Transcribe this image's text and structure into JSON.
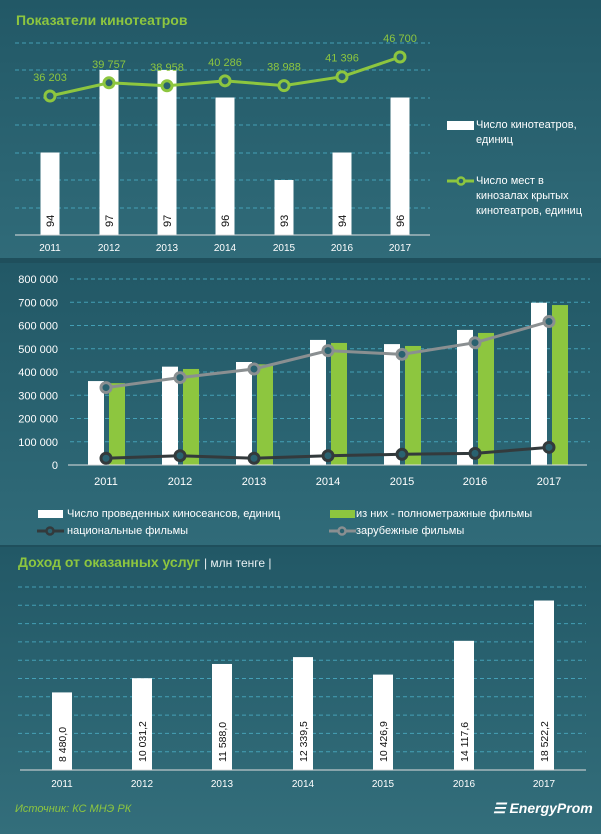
{
  "colors": {
    "green": "#8dc63f",
    "white": "#ffffff",
    "national": "#333a3c",
    "foreign": "#8a8f91",
    "grid": "#4bb0c8"
  },
  "chart_data": [
    {
      "type": "bar+line",
      "title": "Показатели кинотеатров",
      "categories": [
        "2011",
        "2012",
        "2013",
        "2014",
        "2015",
        "2016",
        "2017"
      ],
      "series": [
        {
          "name": "Число кинотеатров, единиц",
          "kind": "bar",
          "values": [
            94,
            97,
            97,
            96,
            93,
            94,
            96
          ],
          "labels": [
            "94",
            "97",
            "97",
            "96",
            "93",
            "94",
            "96"
          ]
        },
        {
          "name": "Число мест в кинозалах крытых кинотеатров, единиц",
          "kind": "line",
          "values": [
            36203,
            39757,
            38958,
            40286,
            38988,
            41396,
            46700
          ],
          "labels": [
            "36 203",
            "39 757",
            "38 958",
            "40 286",
            "38 988",
            "41 396",
            "46 700"
          ]
        }
      ],
      "legend": "right",
      "grid": true
    },
    {
      "type": "bar+line",
      "categories": [
        "2011",
        "2012",
        "2013",
        "2014",
        "2015",
        "2016",
        "2017"
      ],
      "yticks": [
        "0",
        "100 000",
        "200 000",
        "300 000",
        "400 000",
        "500 000",
        "600 000",
        "700 000",
        "800 000"
      ],
      "ylim": [
        0,
        800000
      ],
      "series": [
        {
          "name": "Число проведенных киносеансов, единиц",
          "kind": "bar",
          "values": [
            361000,
            423000,
            443000,
            538000,
            520000,
            581000,
            698000
          ]
        },
        {
          "name": "из них - полнометражные фильмы",
          "kind": "bar",
          "values": [
            352000,
            413000,
            433000,
            525000,
            512000,
            568000,
            688000
          ]
        },
        {
          "name": "национальные фильмы",
          "kind": "line",
          "values": [
            29000,
            40000,
            29000,
            40000,
            46000,
            50000,
            76000
          ]
        },
        {
          "name": "зарубежные фильмы",
          "kind": "line",
          "values": [
            333000,
            376000,
            413000,
            492000,
            476000,
            526000,
            617000
          ]
        }
      ],
      "legend": "bottom",
      "grid": true
    },
    {
      "type": "bar",
      "title": "Доход от оказанных услуг",
      "unit": "| млн тенге |",
      "categories": [
        "2011",
        "2012",
        "2013",
        "2014",
        "2015",
        "2016",
        "2017"
      ],
      "values": [
        8480.0,
        10031.2,
        11588.0,
        12339.5,
        10426.9,
        14117.6,
        18522.2
      ],
      "labels": [
        "8 480,0",
        "10 031,2",
        "11 588,0",
        "12 339,5",
        "10 426,9",
        "14 117,6",
        "18 522,2"
      ],
      "ylim": [
        0,
        20000
      ],
      "grid": true
    }
  ],
  "footer": {
    "source": "Источник: КС МНЭ РК",
    "logo": "EnergyProm"
  }
}
